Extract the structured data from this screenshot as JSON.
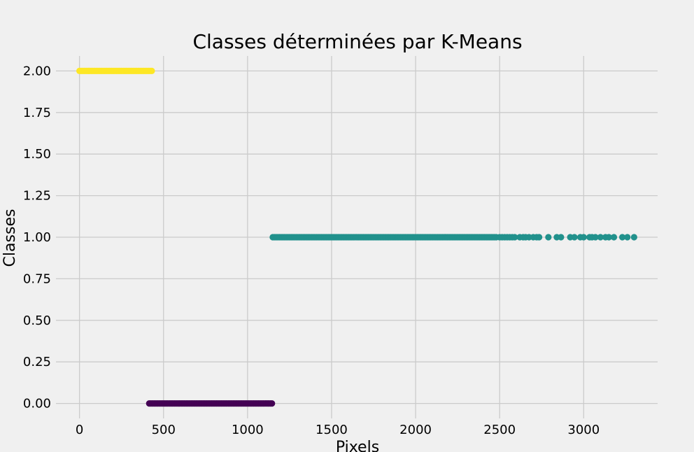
{
  "chart_data": {
    "type": "scatter",
    "title": "Classes déterminées par K-Means",
    "xlabel": "Pixels",
    "ylabel": "Classes",
    "xlim": [
      -140,
      3440
    ],
    "ylim": [
      -0.09,
      2.09
    ],
    "x_ticks": [
      0,
      500,
      1000,
      1500,
      2000,
      2500,
      3000
    ],
    "x_tick_labels": [
      "0",
      "500",
      "1000",
      "1500",
      "2000",
      "2500",
      "3000"
    ],
    "y_ticks": [
      0.0,
      0.25,
      0.5,
      0.75,
      1.0,
      1.25,
      1.5,
      1.75,
      2.0
    ],
    "y_tick_labels": [
      "0.00",
      "0.25",
      "0.50",
      "0.75",
      "1.00",
      "1.25",
      "1.50",
      "1.75",
      "2.00"
    ],
    "grid": true,
    "series": [
      {
        "class": 2,
        "color": "#fde725",
        "x_ranges": [
          [
            0,
            430
          ]
        ],
        "x": [],
        "y": 2.0
      },
      {
        "class": 0,
        "color": "#440154",
        "x_ranges": [
          [
            415,
            1150
          ]
        ],
        "x": [],
        "y": 0.0
      },
      {
        "class": 1,
        "color": "#21918c",
        "x_ranges": [
          [
            1150,
            2480
          ]
        ],
        "x": [
          2500,
          2515,
          2530,
          2545,
          2560,
          2575,
          2590,
          2620,
          2640,
          2655,
          2675,
          2700,
          2720,
          2735,
          2790,
          2840,
          2865,
          2920,
          2945,
          2980,
          3000,
          3035,
          3050,
          3070,
          3100,
          3130,
          3150,
          3180,
          3230,
          3260,
          3300
        ],
        "y": 1.0
      }
    ]
  }
}
